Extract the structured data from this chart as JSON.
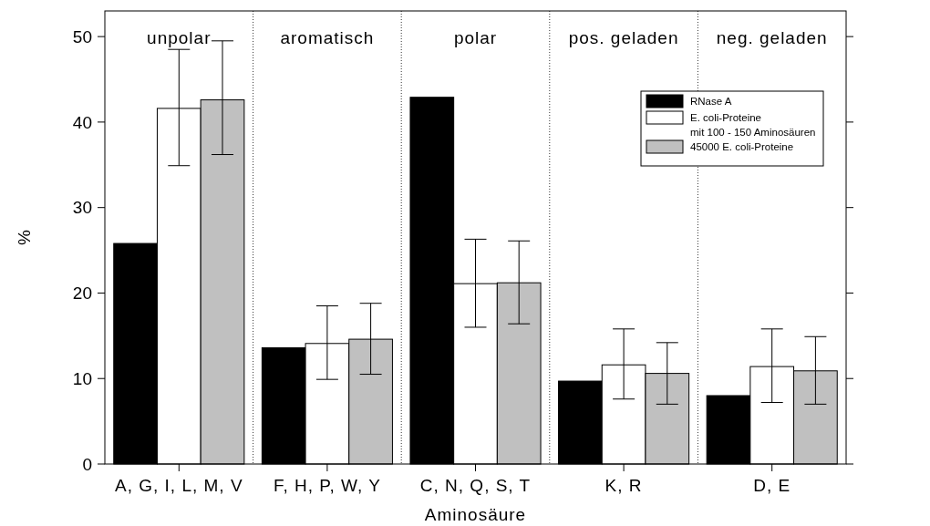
{
  "chart_data": {
    "type": "bar",
    "xlabel": "Aminosäure",
    "ylabel": "%",
    "categories": [
      "A, G, I, L, M, V",
      "F, H, P, W, Y",
      "C, N, Q, S, T",
      "K, R",
      "D, E"
    ],
    "series": [
      {
        "name": "RNase A",
        "color": "#000000",
        "values": [
          25.8,
          13.6,
          42.9,
          9.7,
          8.0
        ]
      },
      {
        "name": "E. coli-Proteine mit 100 - 150 Aminosäuren",
        "color": "#ffffff",
        "values": [
          41.6,
          14.1,
          21.1,
          11.6,
          11.4
        ],
        "errors": [
          [
            34.9,
            48.5
          ],
          [
            9.9,
            18.5
          ],
          [
            16.0,
            26.3
          ],
          [
            7.6,
            15.8
          ],
          [
            7.2,
            15.8
          ]
        ]
      },
      {
        "name": "45000 E. coli-Proteine",
        "color": "#c0c0c0",
        "values": [
          42.6,
          14.6,
          21.2,
          10.6,
          10.9
        ],
        "errors": [
          [
            36.2,
            49.5
          ],
          [
            10.5,
            18.8
          ],
          [
            16.4,
            26.1
          ],
          [
            7.0,
            14.2
          ],
          [
            7.0,
            14.9
          ]
        ]
      }
    ],
    "annotations": [
      "unpolar",
      "aromatisch",
      "polar",
      "pos. geladen",
      "neg. geladen"
    ],
    "ylim": [
      0,
      53
    ],
    "yticks": [
      0,
      10,
      20,
      30,
      40,
      50
    ],
    "grid": "x",
    "legend": "top right"
  }
}
